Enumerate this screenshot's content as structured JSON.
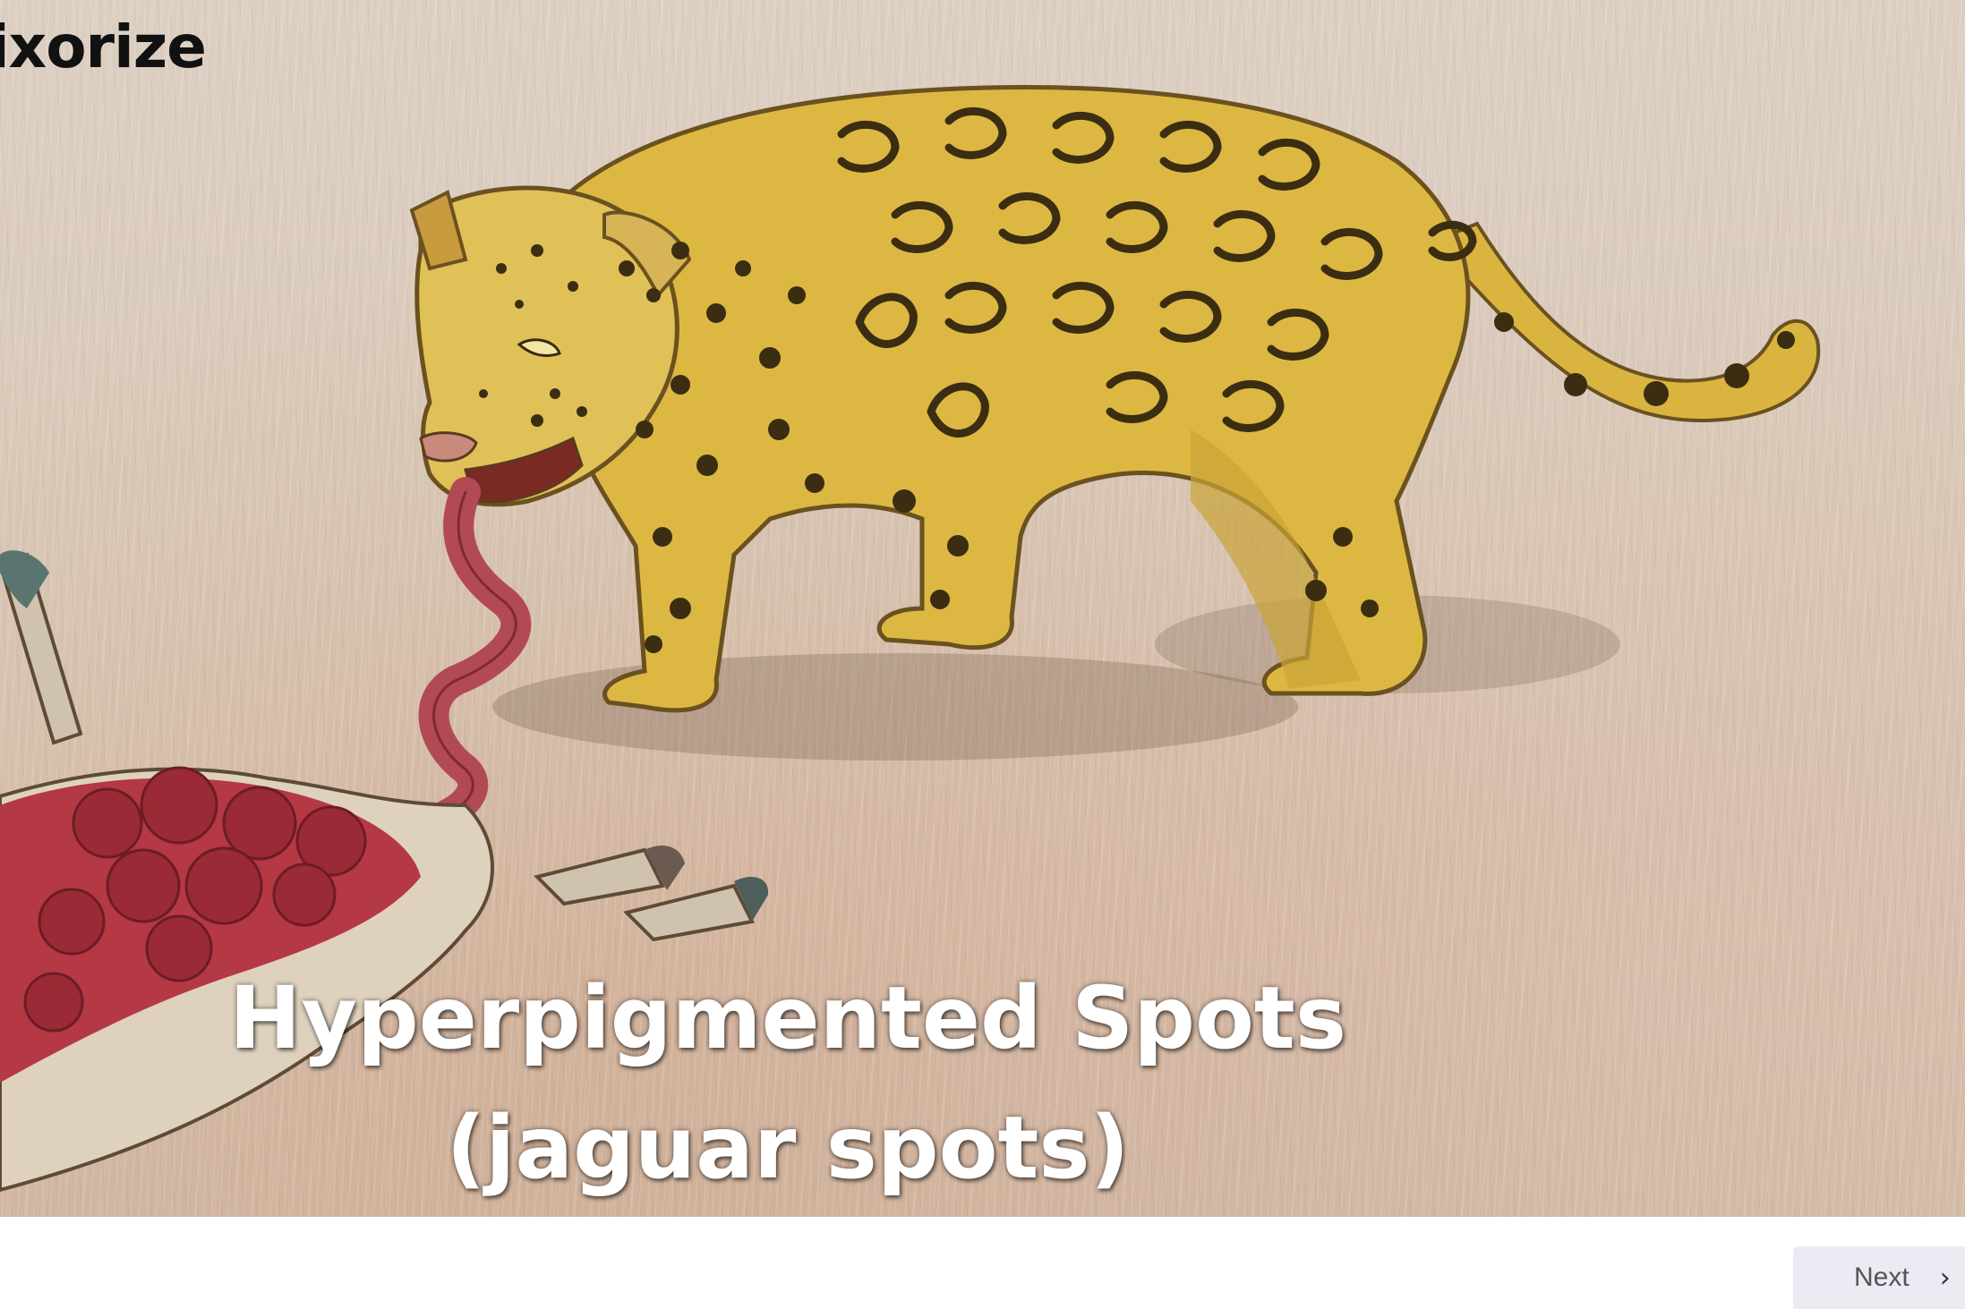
{
  "brand": {
    "name": "Pixorize",
    "visible_text": "ixorize"
  },
  "scene": {
    "description_icon": "jaguar-illustration",
    "caption_line1": "Hyperpigmented Spots",
    "caption_line2": "(jaguar spots)"
  },
  "navigation": {
    "next_label": "Next",
    "next_icon": "chevron-right-icon"
  },
  "colors": {
    "next_bg": "#eceaf3",
    "caption": "#ffffff",
    "brand": "#111111"
  }
}
